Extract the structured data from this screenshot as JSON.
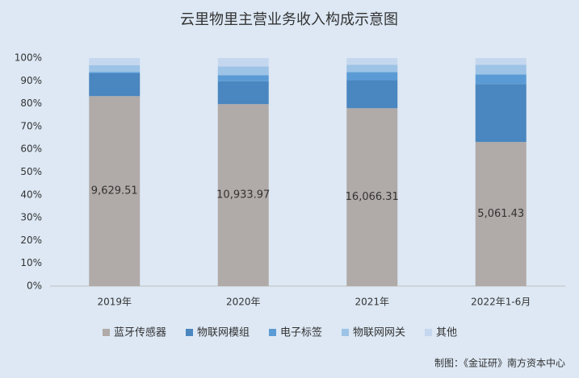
{
  "chart_data": {
    "type": "stacked_bar_percent",
    "title": "云里物里主营业务收入构成示意图",
    "source": "制图：《金证研》南方资本中心",
    "categories": [
      "2019年",
      "2020年",
      "2021年",
      "2022年1-6月"
    ],
    "series": [
      {
        "name": "蓝牙传感器",
        "color": "#b0aaa8",
        "values": [
          83.3,
          79.8,
          78.0,
          63.2
        ],
        "amount_labels": [
          "9,629.51",
          "10,933.97",
          "16,066.31",
          "5,061.43"
        ]
      },
      {
        "name": "物联网模组",
        "color": "#4a86bf",
        "values": [
          10.0,
          10.0,
          12.3,
          25.4
        ]
      },
      {
        "name": "电子标签",
        "color": "#5b9bd5",
        "values": [
          0.6,
          2.7,
          3.5,
          4.2
        ]
      },
      {
        "name": "物联网网关",
        "color": "#9dc3e6",
        "values": [
          3.0,
          3.8,
          3.2,
          4.2
        ]
      },
      {
        "name": "其他",
        "color": "#c5d7ee",
        "values": [
          3.1,
          3.7,
          3.0,
          3.0
        ]
      }
    ],
    "ylim": [
      0,
      100
    ],
    "yticks": [
      {
        "value": 0,
        "label": "0%"
      },
      {
        "value": 10,
        "label": "10%"
      },
      {
        "value": 20,
        "label": "20%"
      },
      {
        "value": 30,
        "label": "30%"
      },
      {
        "value": 40,
        "label": "40%"
      },
      {
        "value": 50,
        "label": "50%"
      },
      {
        "value": 60,
        "label": "60%"
      },
      {
        "value": 70,
        "label": "70%"
      },
      {
        "value": 80,
        "label": "80%"
      },
      {
        "value": 90,
        "label": "90%"
      },
      {
        "value": 100,
        "label": "100%"
      }
    ],
    "grid": false
  }
}
